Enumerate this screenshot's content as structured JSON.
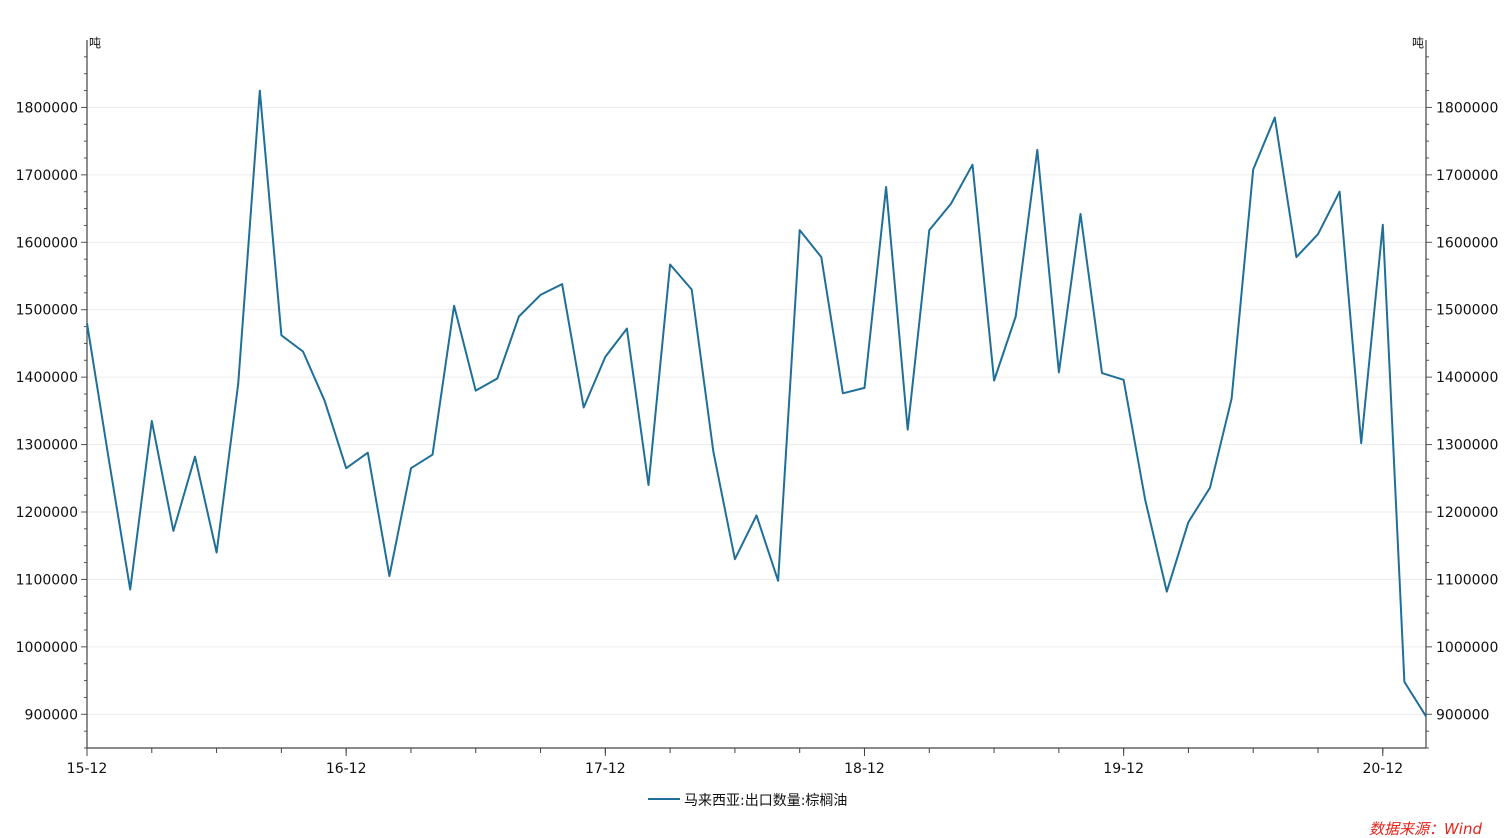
{
  "chart_data": {
    "type": "line",
    "y_unit_left": "吨",
    "y_unit_right": "吨",
    "ylim": [
      850000,
      1900000
    ],
    "y_ticks": [
      900000,
      1000000,
      1100000,
      1200000,
      1300000,
      1400000,
      1500000,
      1600000,
      1700000,
      1800000
    ],
    "x_tick_labels": [
      "15-12",
      "16-12",
      "17-12",
      "18-12",
      "19-12",
      "20-12"
    ],
    "x_tick_index": [
      0,
      12,
      24,
      36,
      48,
      60
    ],
    "minor_tick_step": 3,
    "grid": true,
    "legend_position": "bottom-center",
    "series": [
      {
        "name": "马来西亚:出口数量:棕榈油",
        "color": "#1f6f99",
        "values": [
          1480000,
          1280000,
          1085000,
          1335000,
          1172000,
          1282000,
          1140000,
          1390000,
          1825000,
          1462000,
          1438000,
          1365000,
          1265000,
          1288000,
          1105000,
          1265000,
          1285000,
          1506000,
          1380000,
          1398000,
          1490000,
          1522000,
          1538000,
          1355000,
          1430000,
          1472000,
          1240000,
          1567000,
          1530000,
          1290000,
          1130000,
          1195000,
          1098000,
          1618000,
          1578000,
          1376000,
          1384000,
          1682000,
          1322000,
          1618000,
          1657000,
          1715000,
          1395000,
          1490000,
          1737000,
          1407000,
          1642000,
          1406000,
          1396000,
          1218000,
          1082000,
          1185000,
          1236000,
          1368000,
          1708000,
          1785000,
          1578000,
          1612000,
          1675000,
          1302000,
          1626000,
          948000,
          897000
        ]
      }
    ]
  },
  "source_label": "数据来源：Wind"
}
